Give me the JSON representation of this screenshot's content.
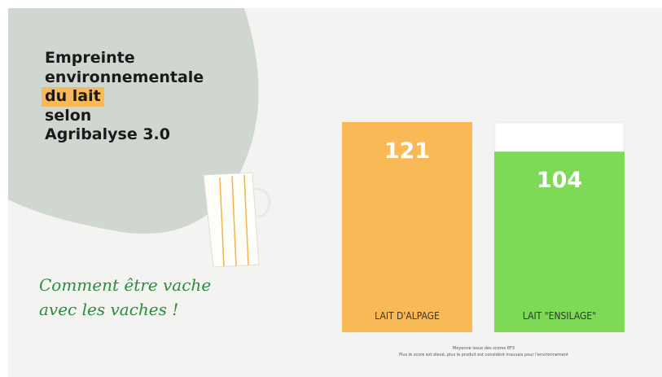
{
  "chart_data": {
    "type": "bar",
    "title_lines": [
      "Empreinte",
      "environnementale",
      "du lait",
      "selon",
      "Agribalyse 3.0"
    ],
    "tagline": [
      "Comment être vache",
      "avec les vaches !"
    ],
    "categories": [
      "LAIT D'ALPAGE",
      "LAIT \"ENSILAGE\""
    ],
    "values": [
      121,
      104
    ],
    "colors": [
      "#f9b957",
      "#7ed957"
    ],
    "ylim": [
      0,
      121
    ],
    "footnotes": [
      "Moyenne issue des scores EF3",
      "Plus le score est élevé, plus le produit est considéré mauvais pour l'environnement"
    ]
  }
}
